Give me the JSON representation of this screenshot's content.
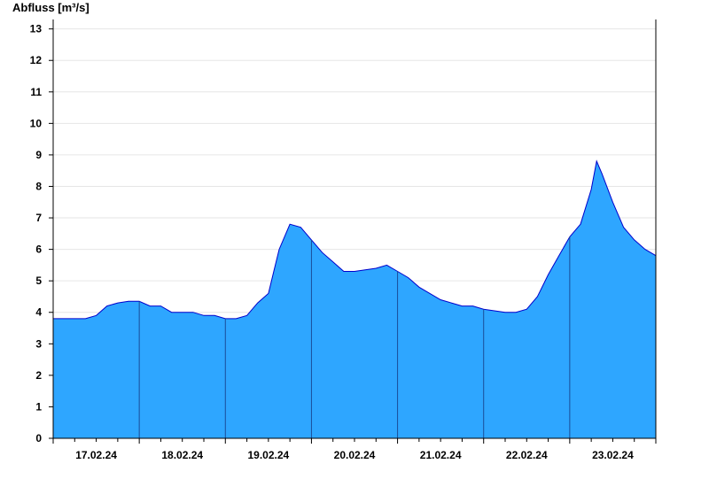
{
  "chart_data": {
    "type": "area",
    "ylabel": "Abfluss [m³/s]",
    "xlabel": "",
    "title": "",
    "ylim": [
      0,
      13.3
    ],
    "yticks": [
      0,
      1,
      2,
      3,
      4,
      5,
      6,
      7,
      8,
      9,
      10,
      11,
      12,
      13
    ],
    "x_range_days": [
      "17.02.24 00:00",
      "24.02.24 00:00"
    ],
    "x_tick_labels": [
      "17.02.24",
      "18.02.24",
      "19.02.24",
      "20.02.24",
      "21.02.24",
      "22.02.24",
      "23.02.24"
    ],
    "grid": "horizontal",
    "fill_color": "#2ea6ff",
    "line_color": "#0000cc",
    "series": [
      {
        "x": [
          "17.02.24 00:00",
          "17.02.24 03:00",
          "17.02.24 06:00",
          "17.02.24 09:00",
          "17.02.24 12:00",
          "17.02.24 15:00",
          "17.02.24 18:00",
          "17.02.24 21:00",
          "18.02.24 00:00",
          "18.02.24 03:00",
          "18.02.24 06:00",
          "18.02.24 09:00",
          "18.02.24 12:00",
          "18.02.24 15:00",
          "18.02.24 18:00",
          "18.02.24 21:00",
          "19.02.24 00:00",
          "19.02.24 03:00",
          "19.02.24 06:00",
          "19.02.24 09:00",
          "19.02.24 12:00",
          "19.02.24 13:30",
          "19.02.24 15:00",
          "19.02.24 18:00",
          "19.02.24 21:00",
          "20.02.24 00:00",
          "20.02.24 03:00",
          "20.02.24 06:00",
          "20.02.24 09:00",
          "20.02.24 12:00",
          "20.02.24 15:00",
          "20.02.24 18:00",
          "20.02.24 21:00",
          "21.02.24 00:00",
          "21.02.24 03:00",
          "21.02.24 06:00",
          "21.02.24 09:00",
          "21.02.24 12:00",
          "21.02.24 15:00",
          "21.02.24 18:00",
          "21.02.24 21:00",
          "22.02.24 00:00",
          "22.02.24 03:00",
          "22.02.24 06:00",
          "22.02.24 09:00",
          "22.02.24 12:00",
          "22.02.24 15:00",
          "22.02.24 18:00",
          "22.02.24 21:00",
          "23.02.24 00:00",
          "23.02.24 03:00",
          "23.02.24 06:00",
          "23.02.24 07:30",
          "23.02.24 09:00",
          "23.02.24 12:00",
          "23.02.24 15:00",
          "23.02.24 18:00",
          "23.02.24 21:00",
          "24.02.24 00:00"
        ],
        "values": [
          3.8,
          3.8,
          3.8,
          3.8,
          3.9,
          4.2,
          4.3,
          4.35,
          4.35,
          4.2,
          4.2,
          4.0,
          4.0,
          4.0,
          3.9,
          3.9,
          3.8,
          3.8,
          3.9,
          4.3,
          4.6,
          5.3,
          6.0,
          6.8,
          6.7,
          6.3,
          5.9,
          5.6,
          5.3,
          5.3,
          5.35,
          5.4,
          5.5,
          5.3,
          5.1,
          4.8,
          4.6,
          4.4,
          4.3,
          4.2,
          4.2,
          4.1,
          4.05,
          4.0,
          4.0,
          4.1,
          4.5,
          5.2,
          5.8,
          6.4,
          6.8,
          7.9,
          8.8,
          8.4,
          7.5,
          6.7,
          6.3,
          6.0,
          5.8
        ]
      }
    ]
  }
}
